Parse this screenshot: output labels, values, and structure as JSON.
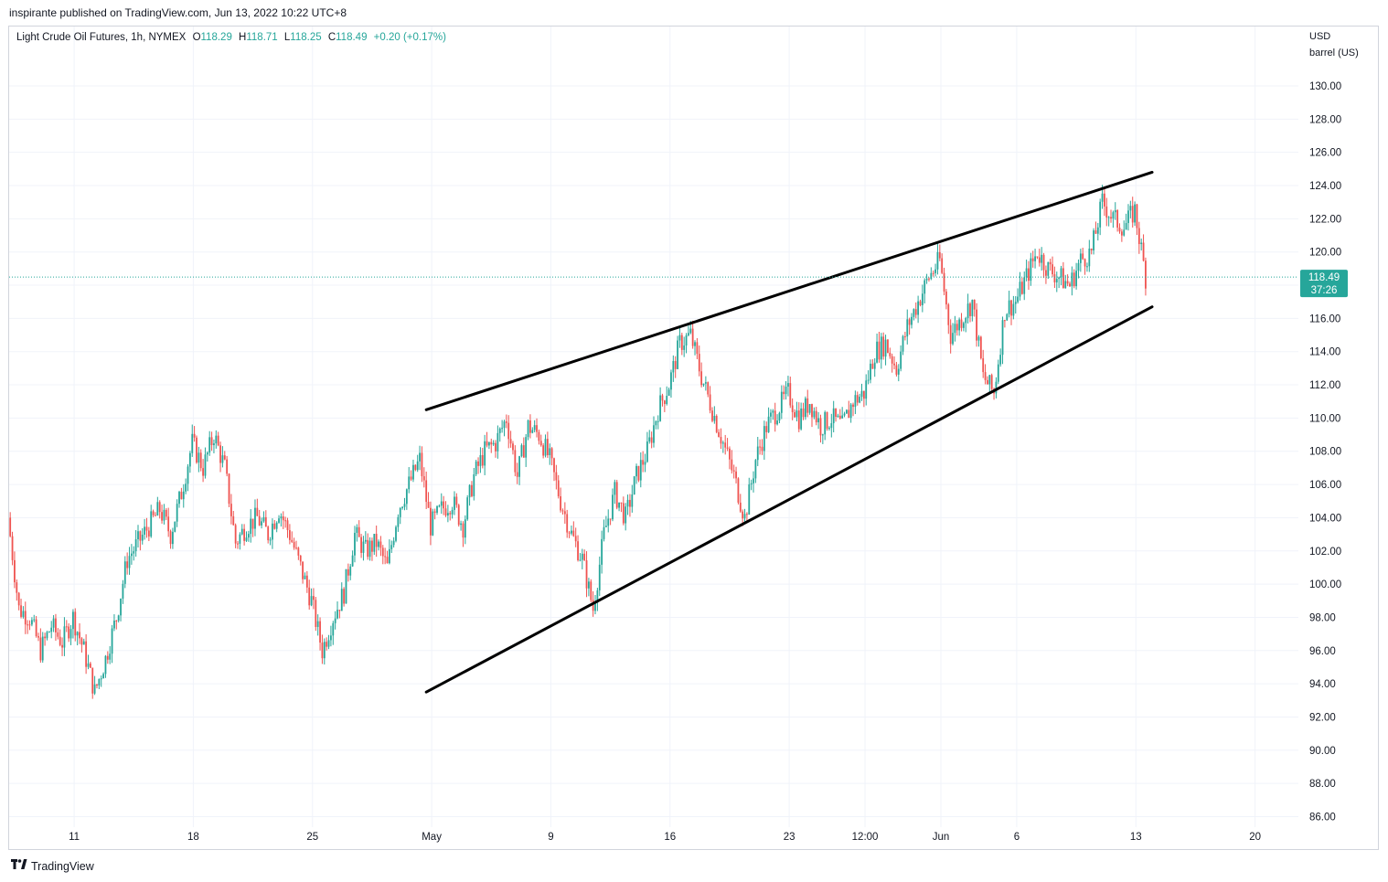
{
  "header": {
    "publish_line": "inspirante published on TradingView.com, Jun 13, 2022 10:22 UTC+8"
  },
  "legend": {
    "symbol": "Light Crude Oil Futures, 1h, NYMEX",
    "open_label": "O",
    "open": "118.29",
    "high_label": "H",
    "high": "118.71",
    "low_label": "L",
    "low": "118.25",
    "close_label": "C",
    "close": "118.49",
    "change": "+0.20 (+0.17%)"
  },
  "scale_unit": {
    "currency": "USD",
    "unit": "barrel (US)"
  },
  "price_badge": {
    "price": "118.49",
    "countdown": "37:26"
  },
  "footer": {
    "brand": "TradingView"
  },
  "colors": {
    "up": "#26a69a",
    "down": "#ef5350",
    "badge": "#26a69a",
    "trendline": "#000000",
    "grid": "#f0f3fa"
  },
  "chart_data": {
    "type": "candlestick",
    "title": "Light Crude Oil Futures, 1h, NYMEX",
    "ylim": [
      85,
      133
    ],
    "y_ticks": [
      "130.00",
      "128.00",
      "126.00",
      "124.00",
      "122.00",
      "120.00",
      "118.00",
      "116.00",
      "114.00",
      "112.00",
      "110.00",
      "108.00",
      "106.00",
      "104.00",
      "102.00",
      "100.00",
      "98.00",
      "96.00",
      "94.00",
      "92.00",
      "90.00",
      "88.00",
      "86.00"
    ],
    "x_ticks": [
      {
        "label": "11",
        "idx": 6
      },
      {
        "label": "18",
        "idx": 17
      },
      {
        "label": "25",
        "idx": 28
      },
      {
        "label": "May",
        "idx": 39
      },
      {
        "label": "9",
        "idx": 50
      },
      {
        "label": "16",
        "idx": 61
      },
      {
        "label": "23",
        "idx": 72
      },
      {
        "label": "12:00",
        "idx": 79
      },
      {
        "label": "Jun",
        "idx": 86
      },
      {
        "label": "6",
        "idx": 93
      },
      {
        "label": "13",
        "idx": 104
      },
      {
        "label": "20",
        "idx": 115
      }
    ],
    "x_range": [
      0,
      119
    ],
    "close_series": [
      104.0,
      98.5,
      98.0,
      96.0,
      97.5,
      96.5,
      98.0,
      96.0,
      93.5,
      95.5,
      98.0,
      101.5,
      102.5,
      103.5,
      104.5,
      103.0,
      105.5,
      108.5,
      107.0,
      109.0,
      107.0,
      102.5,
      103.5,
      104.0,
      103.0,
      104.5,
      103.0,
      101.0,
      99.0,
      96.0,
      98.0,
      99.5,
      103.0,
      102.0,
      102.5,
      101.0,
      104.5,
      106.0,
      107.5,
      103.5,
      104.5,
      105.0,
      103.5,
      106.5,
      108.0,
      108.5,
      110.0,
      106.5,
      109.5,
      109.0,
      107.5,
      105.0,
      103.0,
      101.5,
      98.5,
      103.0,
      105.5,
      104.0,
      106.5,
      108.0,
      110.5,
      112.0,
      114.5,
      115.0,
      112.5,
      110.5,
      108.5,
      106.5,
      104.0,
      107.5,
      109.5,
      110.5,
      111.5,
      110.0,
      111.0,
      109.5,
      110.0,
      109.5,
      111.0,
      111.5,
      114.0,
      114.5,
      113.0,
      115.5,
      117.0,
      118.5,
      119.5,
      115.0,
      116.0,
      117.0,
      112.5,
      111.5,
      116.5,
      117.0,
      118.5,
      120.0,
      119.0,
      118.5,
      118.0,
      119.5,
      120.0,
      123.0,
      122.0,
      121.5,
      122.5,
      118.5
    ],
    "last_price": 118.49,
    "trendlines": [
      {
        "name": "upper",
        "from": [
          38.5,
          110.5
        ],
        "to": [
          105.5,
          124.8
        ]
      },
      {
        "name": "lower",
        "from": [
          38.5,
          93.5
        ],
        "to": [
          105.5,
          116.7
        ]
      }
    ]
  }
}
